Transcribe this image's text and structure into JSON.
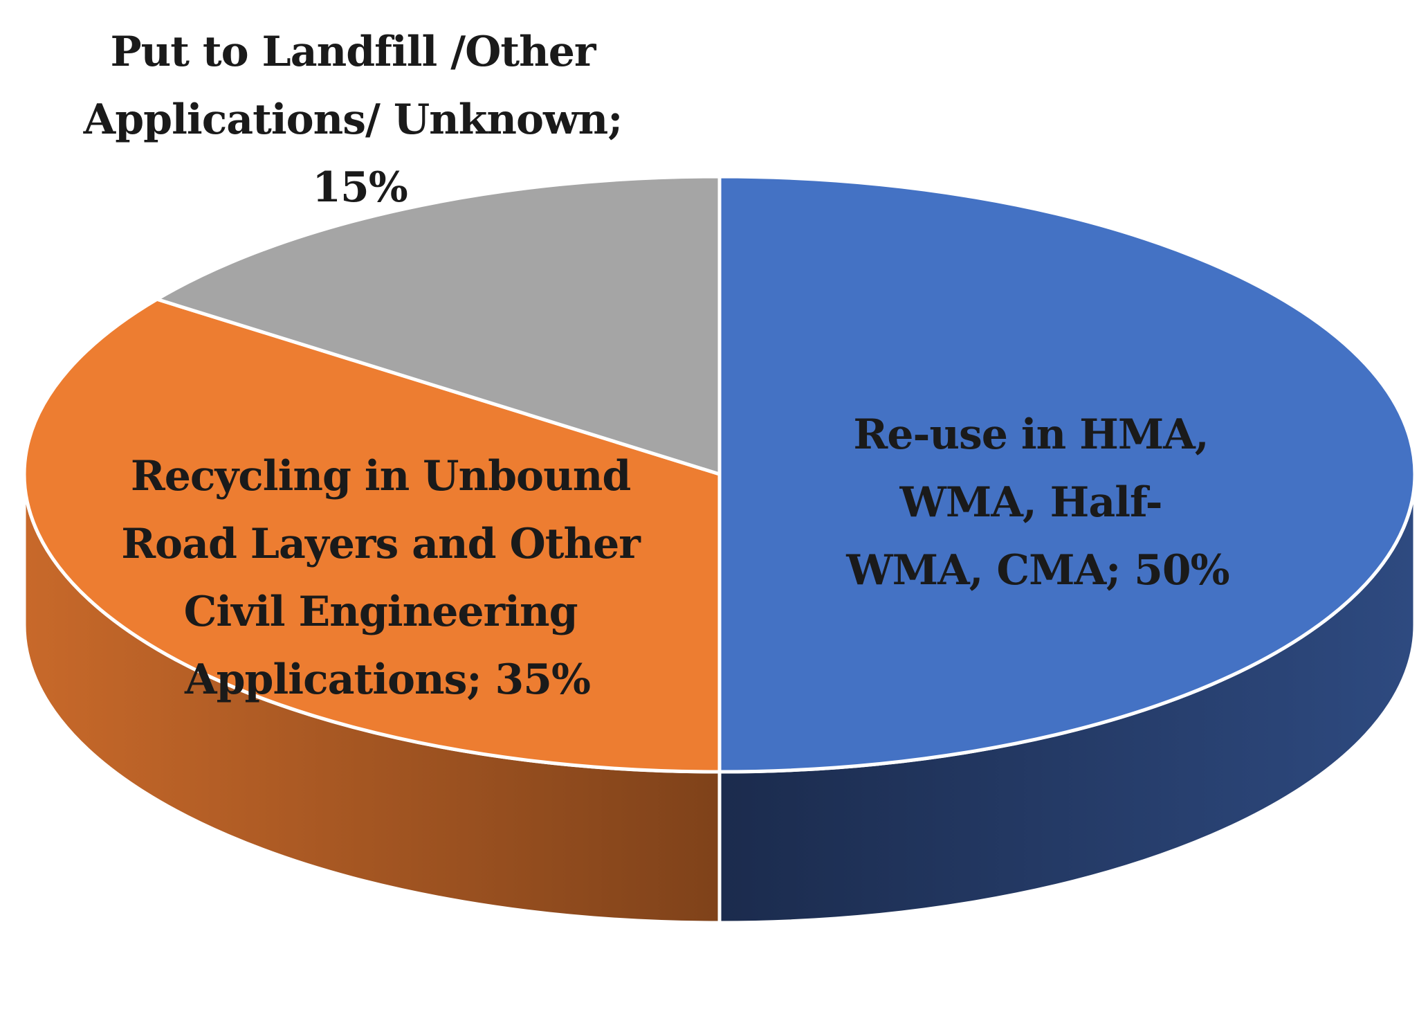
{
  "chart_data": {
    "type": "pie",
    "title": "",
    "legend": "none",
    "slices": [
      {
        "name": "Re-use in HMA, WMA, Half-WMA, CMA",
        "value": 50,
        "label_lines": [
          "Re-use in HMA,",
          "WMA, Half-",
          "WMA, CMA; 50%"
        ],
        "color": "#4472C4",
        "side_color_dark": "#1B2B4D",
        "side_color_light": "#2E4A80"
      },
      {
        "name": "Recycling in Unbound Road Layers and Other Civil Engineering Applications",
        "value": 35,
        "label_lines": [
          "Recycling in Unbound",
          "Road Layers and Other",
          "Civil Engineering",
          "Applications; 35%"
        ],
        "color": "#ED7D31",
        "side_color_dark": "#7F421A",
        "side_color_light": "#C8692A"
      },
      {
        "name": "Put to Landfill /Other Applications/ Unknown",
        "value": 15,
        "label_lines": [
          "Put to Landfill /Other",
          "Applications/ Unknown;",
          "15%"
        ],
        "color": "#A5A5A5",
        "side_color_dark": "#6E6E6E",
        "side_color_light": "#8C8C8C"
      }
    ],
    "style": "3d-pie"
  }
}
